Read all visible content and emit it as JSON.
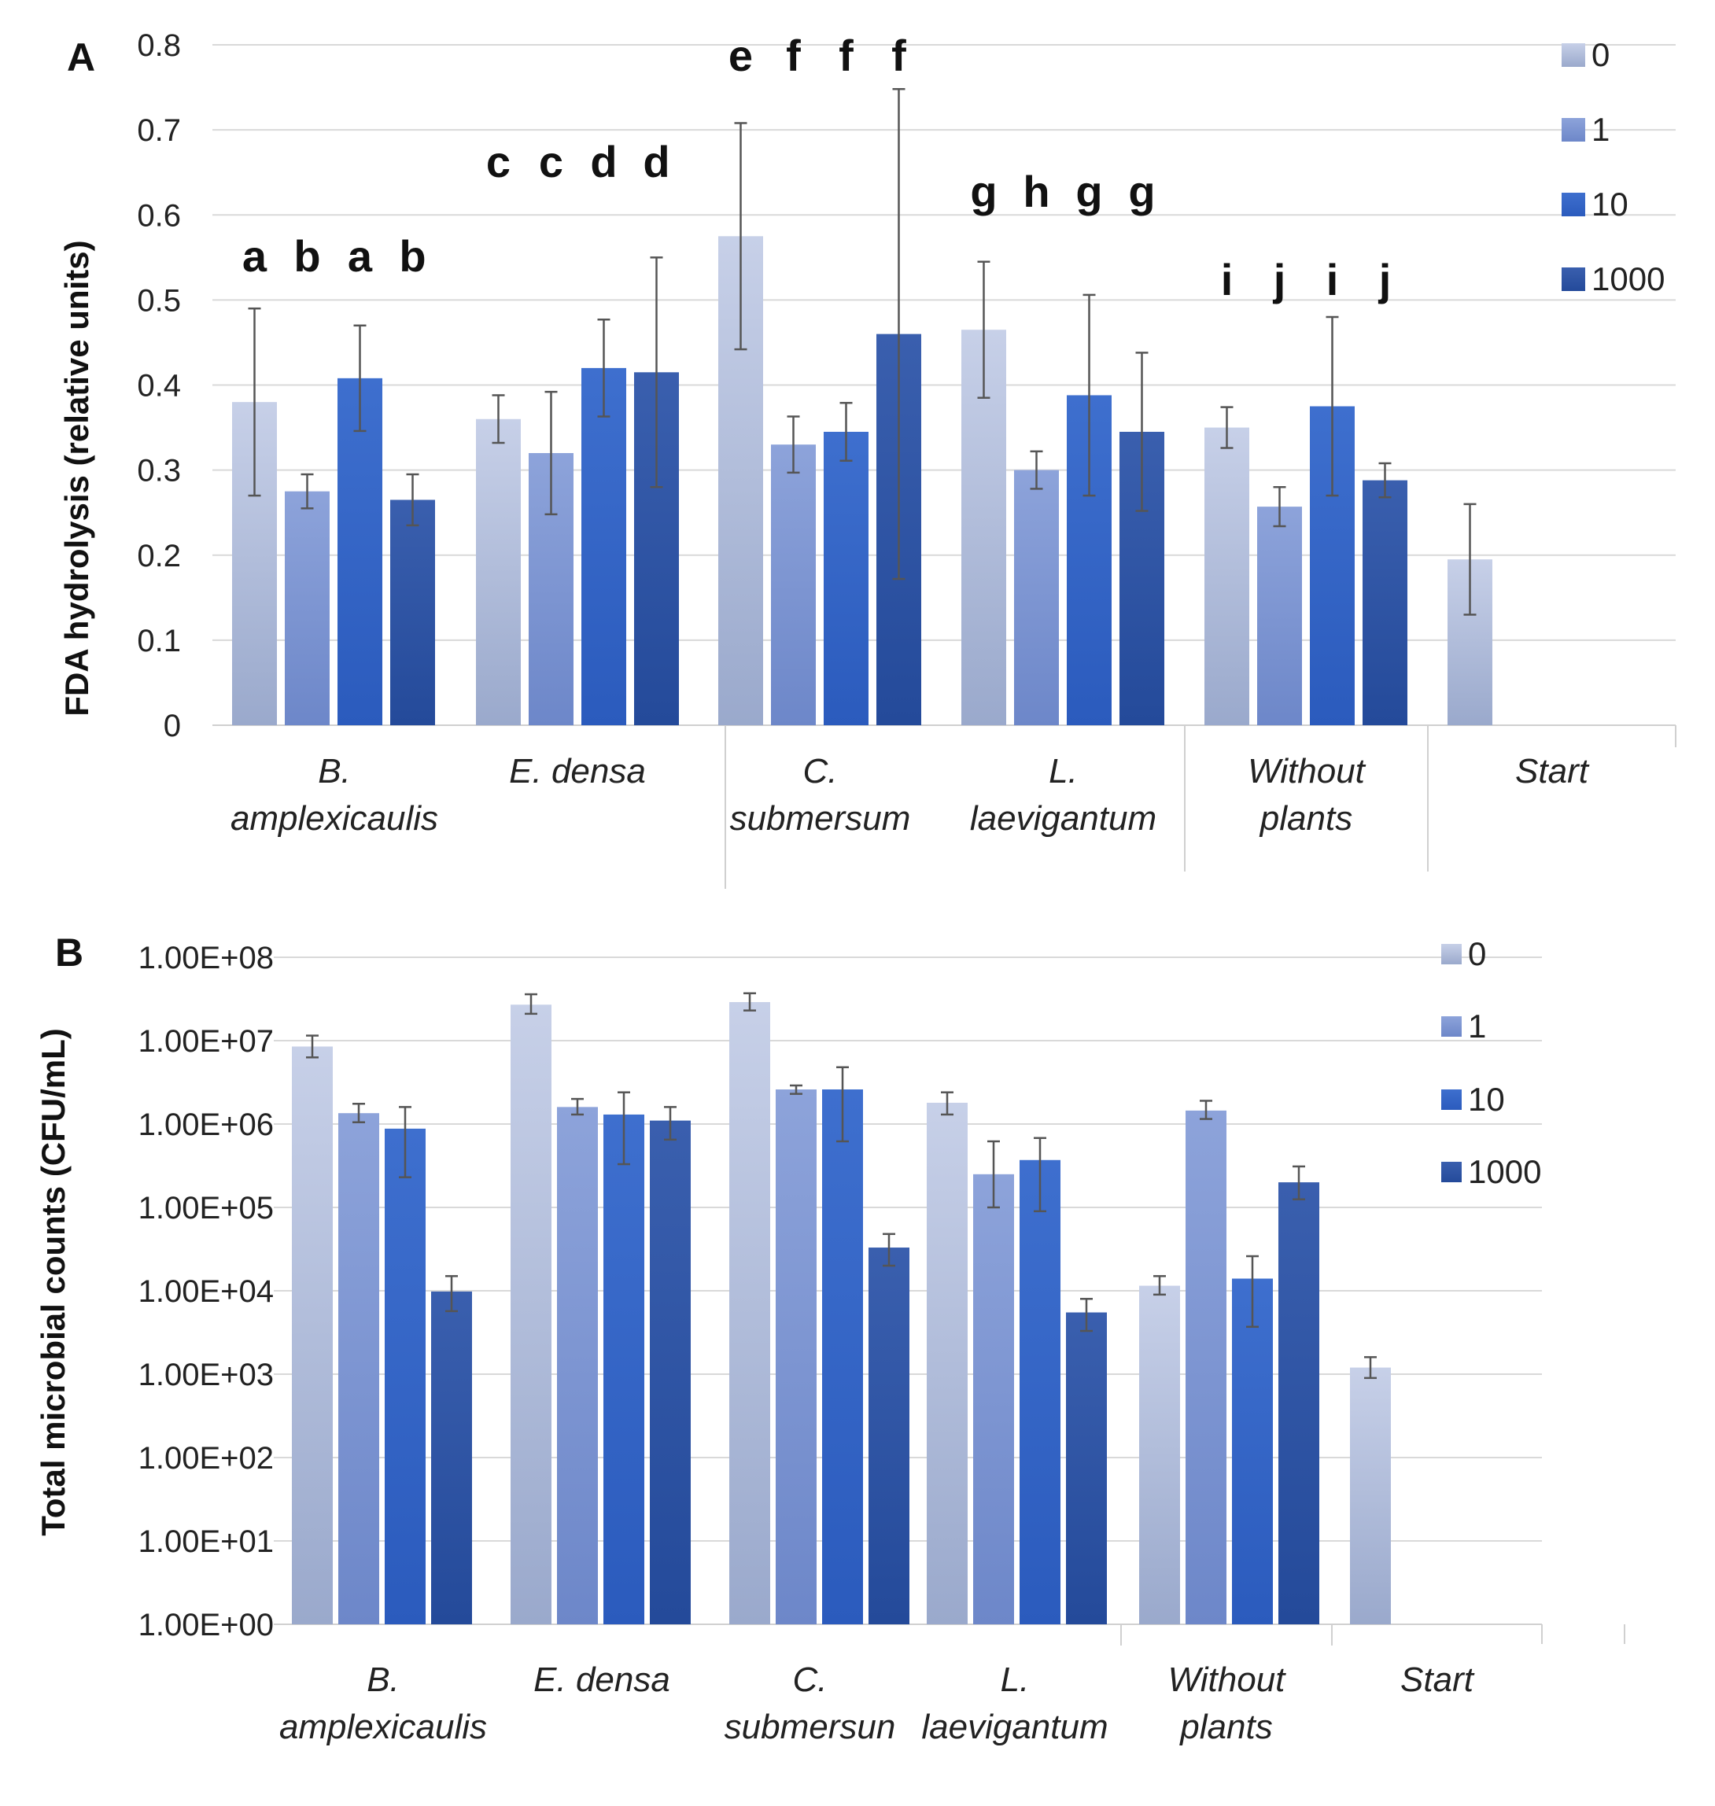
{
  "colors": {
    "series_top": [
      "#c7d0e8",
      "#8da3da",
      "#3e6fce",
      "#3a5fae"
    ],
    "series_bottom": [
      "#9aa9cc",
      "#6d87c9",
      "#2b5bbd",
      "#244a9a"
    ]
  },
  "chart_data": [
    {
      "type": "bar",
      "panel": "A",
      "title": "",
      "xlabel": "",
      "ylabel": "FDA hydrolysis (relative units)",
      "ylim": [
        0,
        0.8
      ],
      "yticks": [
        "0",
        "0.1",
        "0.2",
        "0.3",
        "0.4",
        "0.5",
        "0.6",
        "0.7",
        "0.8"
      ],
      "categories": [
        [
          "B.",
          "amplexicaulis"
        ],
        [
          "E. densa"
        ],
        [
          "C.",
          "submersum"
        ],
        [
          "L.",
          "laevigantum"
        ],
        [
          "Without",
          "plants"
        ],
        [
          "Start"
        ]
      ],
      "legend": [
        "0",
        "1",
        "10",
        "1000"
      ],
      "legend_position": "top-right",
      "grid": true,
      "series": [
        {
          "name": "0",
          "values": [
            0.38,
            0.36,
            0.575,
            0.465,
            0.35,
            0.195
          ],
          "errors": [
            0.11,
            0.028,
            0.133,
            0.08,
            0.024,
            0.065
          ]
        },
        {
          "name": "1",
          "values": [
            0.275,
            0.32,
            0.33,
            0.3,
            0.257,
            null
          ],
          "errors": [
            0.02,
            0.072,
            0.033,
            0.022,
            0.023,
            null
          ]
        },
        {
          "name": "10",
          "values": [
            0.408,
            0.42,
            0.345,
            0.388,
            0.375,
            null
          ],
          "errors": [
            0.062,
            0.057,
            0.034,
            0.118,
            0.105,
            null
          ]
        },
        {
          "name": "1000",
          "values": [
            0.265,
            0.415,
            0.46,
            0.345,
            0.288,
            null
          ],
          "errors": [
            0.03,
            0.135,
            0.288,
            0.093,
            0.02,
            null
          ]
        }
      ],
      "significance_letters": [
        [
          "a",
          "b",
          "a",
          "b"
        ],
        [
          "c",
          "c",
          "d",
          "d"
        ],
        [
          "e",
          "f",
          "f",
          "f"
        ],
        [
          "g",
          "h",
          "g",
          "g"
        ],
        [
          "i",
          "j",
          "i",
          "j"
        ],
        []
      ]
    },
    {
      "type": "bar",
      "panel": "B",
      "title": "",
      "xlabel": "",
      "ylabel": "Total microbial counts (CFU/mL)",
      "yscale": "log",
      "ylim": [
        1,
        100000000
      ],
      "yticks": [
        "1.00E+00",
        "1.00E+01",
        "1.00E+02",
        "1.00E+03",
        "1.00E+04",
        "1.00E+05",
        "1.00E+06",
        "1.00E+07",
        "1.00E+08"
      ],
      "categories": [
        [
          "B.",
          "amplexicaulis"
        ],
        [
          "E. densa"
        ],
        [
          "C.",
          "submersun"
        ],
        [
          "L.",
          "laevigantum"
        ],
        [
          "Without",
          "plants"
        ],
        [
          "Start"
        ]
      ],
      "legend": [
        "0",
        "1",
        "10",
        "1000"
      ],
      "legend_position": "top-right",
      "grid": true,
      "series": [
        {
          "name": "0",
          "values": [
            8500000,
            27000000,
            29000000,
            1800000,
            11500,
            1200
          ],
          "err_low": [
            6300000,
            21000000,
            23000000,
            1300000,
            9000,
            900
          ],
          "err_high": [
            11500000,
            36000000,
            37000000,
            2400000,
            15000,
            1600
          ]
        },
        {
          "name": "1",
          "values": [
            1350000,
            1600000,
            2600000,
            250000,
            1450000,
            null
          ],
          "err_low": [
            1050000,
            1300000,
            2300000,
            100000,
            1150000,
            null
          ],
          "err_high": [
            1750000,
            2000000,
            2900000,
            620000,
            1900000,
            null
          ]
        },
        {
          "name": "10",
          "values": [
            880000,
            1300000,
            2600000,
            370000,
            14000,
            null
          ],
          "err_low": [
            230000,
            330000,
            620000,
            90000,
            3700,
            null
          ],
          "err_high": [
            1600000,
            2400000,
            4800000,
            680000,
            26000,
            null
          ]
        },
        {
          "name": "1000",
          "values": [
            9800,
            1100000,
            33000,
            5500,
            200000,
            null
          ],
          "err_low": [
            5700,
            650000,
            20000,
            3300,
            125000,
            null
          ],
          "err_high": [
            15000,
            1600000,
            48000,
            8000,
            310000,
            null
          ]
        }
      ]
    }
  ]
}
